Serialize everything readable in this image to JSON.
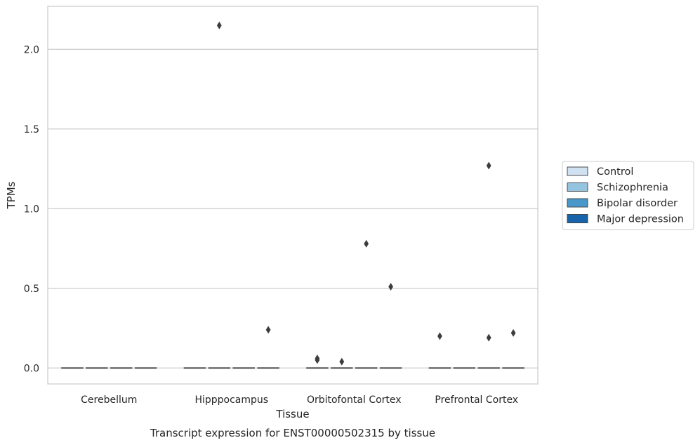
{
  "chart_data": {
    "type": "box",
    "caption": "Transcript expression for ENST00000502315 by tissue",
    "xlabel": "Tissue",
    "ylabel": "TPMs",
    "ylim": [
      -0.1,
      2.27
    ],
    "yticks": [
      0.0,
      0.5,
      1.0,
      1.5,
      2.0
    ],
    "ytick_labels": [
      "0.0",
      "0.5",
      "1.0",
      "1.5",
      "2.0"
    ],
    "grid": "horizontal",
    "legend_position": "right",
    "categories": [
      "Cerebellum",
      "Hipppocampus",
      "Orbitofontal Cortex",
      "Prefrontal Cortex"
    ],
    "series": [
      {
        "name": "Control",
        "color": "#d0e1f2",
        "medians": [
          0,
          0,
          0,
          0
        ],
        "outliers": [
          [],
          [],
          [
            0.06,
            0.05
          ],
          [
            0.2
          ]
        ]
      },
      {
        "name": "Schizophrenia",
        "color": "#94c4df",
        "medians": [
          0,
          0,
          0,
          0
        ],
        "outliers": [
          [],
          [
            2.15
          ],
          [
            0.04
          ],
          []
        ]
      },
      {
        "name": "Bipolar disorder",
        "color": "#4a98c9",
        "medians": [
          0,
          0,
          0,
          0
        ],
        "outliers": [
          [],
          [],
          [
            0.78
          ],
          [
            1.27,
            0.19
          ]
        ]
      },
      {
        "name": "Major depression",
        "color": "#1764ab",
        "medians": [
          0,
          0,
          0,
          0
        ],
        "outliers": [
          [],
          [
            0.24
          ],
          [
            0.51
          ],
          [
            0.22
          ]
        ]
      }
    ]
  }
}
